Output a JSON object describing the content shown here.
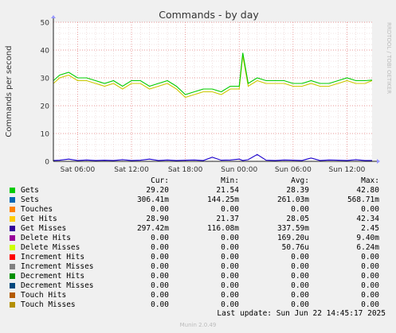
{
  "chart_data": {
    "type": "line",
    "title": "Commands - by day",
    "ylabel": "Commands per second",
    "watermark": "RRDTOOL / TOBI OETIKER",
    "ylim": [
      0,
      50
    ],
    "yticks": [
      "0",
      "10",
      "20",
      "30",
      "40",
      "50"
    ],
    "xticks": [
      {
        "label": "Sat 06:00",
        "hour": 6
      },
      {
        "label": "Sat 12:00",
        "hour": 12
      },
      {
        "label": "Sat 18:00",
        "hour": 18
      },
      {
        "label": "Sun 00:00",
        "hour": 24
      },
      {
        "label": "Sun 06:00",
        "hour": 30
      },
      {
        "label": "Sun 12:00",
        "hour": 36
      }
    ],
    "xlim_hours": [
      3.3,
      38.8
    ],
    "grid": true,
    "series": [
      {
        "name": "Get Hits",
        "color": "#ccc800",
        "x": [
          3.3,
          4,
          5,
          6,
          7,
          8,
          9,
          10,
          11,
          12,
          13,
          14,
          15,
          16,
          17,
          18,
          19,
          20,
          21,
          22,
          23,
          24,
          24.4,
          25,
          26,
          27,
          28,
          29,
          30,
          31,
          32,
          33,
          34,
          35,
          36,
          37,
          38,
          38.8
        ],
        "y": [
          28,
          30,
          31,
          29,
          29,
          28,
          27,
          28,
          26,
          28,
          28,
          26,
          27,
          28,
          26,
          23,
          24,
          25,
          25,
          24,
          26,
          26,
          38,
          27,
          29,
          28,
          28,
          28,
          27,
          27,
          28,
          27,
          27,
          28,
          29,
          28,
          28,
          29
        ]
      },
      {
        "name": "Gets",
        "color": "#00cc00",
        "x": [
          3.3,
          4,
          5,
          6,
          7,
          8,
          9,
          10,
          11,
          12,
          13,
          14,
          15,
          16,
          17,
          18,
          19,
          20,
          21,
          22,
          23,
          24,
          24.4,
          25,
          26,
          27,
          28,
          29,
          30,
          31,
          32,
          33,
          34,
          35,
          36,
          37,
          38,
          38.8
        ],
        "y": [
          29,
          31,
          32,
          30,
          30,
          29,
          28,
          29,
          27,
          29,
          29,
          27,
          28,
          29,
          27,
          24,
          25,
          26,
          26,
          25,
          27,
          27,
          39,
          28,
          30,
          29,
          29,
          29,
          28,
          28,
          29,
          28,
          28,
          29,
          30,
          29,
          29,
          29.2
        ]
      },
      {
        "name": "Get Misses",
        "color": "#1a00cc",
        "x": [
          3.3,
          4,
          5,
          6,
          7,
          8,
          9,
          10,
          11,
          12,
          13,
          14,
          15,
          16,
          17,
          18,
          19,
          20,
          21,
          22,
          23,
          24,
          24.4,
          25,
          26,
          27,
          28,
          29,
          30,
          31,
          32,
          33,
          34,
          35,
          36,
          37,
          38,
          38.8
        ],
        "y": [
          0.3,
          0.4,
          0.8,
          0.3,
          0.5,
          0.3,
          0.4,
          0.3,
          0.6,
          0.3,
          0.4,
          0.8,
          0.3,
          0.5,
          0.3,
          0.4,
          0.5,
          0.3,
          1.5,
          0.4,
          0.5,
          0.8,
          0.3,
          0.6,
          2.45,
          0.4,
          0.3,
          0.5,
          0.4,
          0.3,
          1.2,
          0.3,
          0.5,
          0.4,
          0.3,
          0.6,
          0.3,
          0.3
        ]
      }
    ]
  },
  "legend": {
    "headers": {
      "cur": "Cur:",
      "min": "Min:",
      "avg": "Avg:",
      "max": "Max:"
    },
    "rows": [
      {
        "name": "Gets",
        "color": "#00cc00",
        "cur": "29.20",
        "min": "21.54",
        "avg": "28.39",
        "max": "42.80"
      },
      {
        "name": "Sets",
        "color": "#0066b3",
        "cur": "306.41m",
        "min": "144.25m",
        "avg": "261.03m",
        "max": "568.71m"
      },
      {
        "name": "Touches",
        "color": "#ff8000",
        "cur": "0.00",
        "min": "0.00",
        "avg": "0.00",
        "max": "0.00"
      },
      {
        "name": "Get Hits",
        "color": "#ffcc00",
        "cur": "28.90",
        "min": "21.37",
        "avg": "28.05",
        "max": "42.34"
      },
      {
        "name": "Get Misses",
        "color": "#330099",
        "cur": "297.42m",
        "min": "116.08m",
        "avg": "337.59m",
        "max": "2.45"
      },
      {
        "name": "Delete Hits",
        "color": "#990099",
        "cur": "0.00",
        "min": "0.00",
        "avg": "169.20u",
        "max": "9.40m"
      },
      {
        "name": "Delete Misses",
        "color": "#ccff00",
        "cur": "0.00",
        "min": "0.00",
        "avg": "50.76u",
        "max": "6.24m"
      },
      {
        "name": "Increment Hits",
        "color": "#ff0000",
        "cur": "0.00",
        "min": "0.00",
        "avg": "0.00",
        "max": "0.00"
      },
      {
        "name": "Increment Misses",
        "color": "#808080",
        "cur": "0.00",
        "min": "0.00",
        "avg": "0.00",
        "max": "0.00"
      },
      {
        "name": "Decrement Hits",
        "color": "#008f00",
        "cur": "0.00",
        "min": "0.00",
        "avg": "0.00",
        "max": "0.00"
      },
      {
        "name": "Decrement Misses",
        "color": "#00487d",
        "cur": "0.00",
        "min": "0.00",
        "avg": "0.00",
        "max": "0.00"
      },
      {
        "name": "Touch Hits",
        "color": "#b35a00",
        "cur": "0.00",
        "min": "0.00",
        "avg": "0.00",
        "max": "0.00"
      },
      {
        "name": "Touch Misses",
        "color": "#b38f00",
        "cur": "0.00",
        "min": "0.00",
        "avg": "0.00",
        "max": "0.00"
      }
    ]
  },
  "last_update": "Last update: Sun Jun 22 14:45:17 2025",
  "footer": "Munin 2.0.49"
}
